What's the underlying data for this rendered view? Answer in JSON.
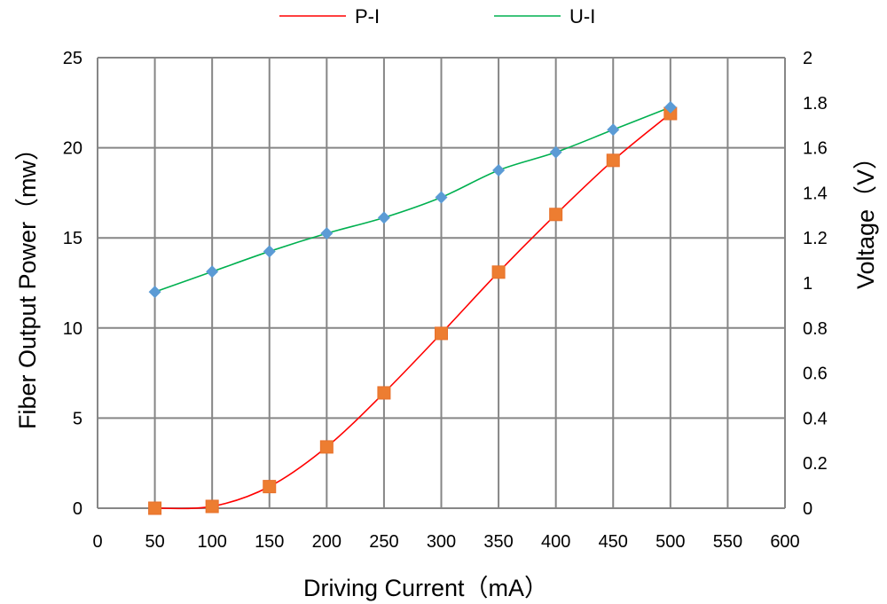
{
  "chart_data": {
    "type": "line",
    "title": "",
    "xlabel": "Driving Current（mA）",
    "ylabel": "Fiber Output Power（mw）",
    "y2label": "Voltage（V）",
    "xlim": [
      0,
      600
    ],
    "ylim": [
      0,
      25
    ],
    "y2lim": [
      0,
      2
    ],
    "x_ticks": [
      "0",
      "50",
      "100",
      "150",
      "200",
      "250",
      "300",
      "350",
      "400",
      "450",
      "500",
      "550",
      "600"
    ],
    "y_ticks": [
      "0",
      "5",
      "10",
      "15",
      "20",
      "25"
    ],
    "y2_ticks": [
      "0",
      "0.2",
      "0.4",
      "0.6",
      "0.8",
      "1",
      "1.2",
      "1.4",
      "1.6",
      "1.8",
      "2"
    ],
    "grid": true,
    "legend_position": "top",
    "series": [
      {
        "name": "P-I",
        "axis": "left",
        "line_color": "#ff0000",
        "marker": "square",
        "marker_color": "#ed7d31",
        "smooth": true,
        "x": [
          50,
          100,
          150,
          200,
          250,
          300,
          350,
          400,
          450,
          500
        ],
        "y": [
          0,
          0.1,
          1.2,
          3.4,
          6.4,
          9.7,
          13.1,
          16.3,
          19.3,
          21.9
        ]
      },
      {
        "name": "U-I",
        "axis": "right",
        "line_color": "#00b050",
        "marker": "diamond",
        "marker_color": "#5b9bd5",
        "smooth": true,
        "x": [
          50,
          100,
          150,
          200,
          250,
          300,
          350,
          400,
          450,
          500
        ],
        "y": [
          0.96,
          1.05,
          1.14,
          1.22,
          1.29,
          1.38,
          1.5,
          1.58,
          1.68,
          1.78
        ]
      }
    ]
  }
}
